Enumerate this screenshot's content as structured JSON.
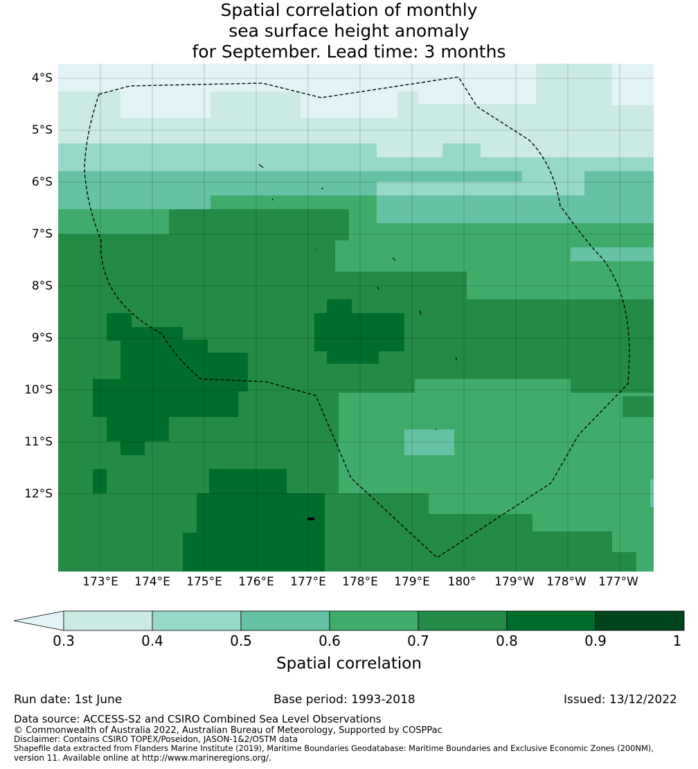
{
  "title_lines": [
    "Spatial correlation of monthly",
    "sea surface height anomaly",
    "for September. Lead time: 3 months"
  ],
  "map": {
    "lat_labels": [
      "4°S",
      "5°S",
      "6°S",
      "7°S",
      "8°S",
      "9°S",
      "10°S",
      "11°S",
      "12°S"
    ],
    "lon_labels": [
      "173°E",
      "174°E",
      "175°E",
      "176°E",
      "177°E",
      "178°E",
      "179°E",
      "180°",
      "179°W",
      "178°W",
      "177°W"
    ],
    "grid_on": true,
    "boundary_line": "dashed",
    "colors": [
      "#e3f4f7",
      "#cbeae3",
      "#98d8c9",
      "#66c2a4",
      "#40ac6c",
      "#238b45",
      "#006d2c",
      "#00441b"
    ]
  },
  "colorbar": {
    "ticks": [
      "0.3",
      "0.4",
      "0.5",
      "0.6",
      "0.7",
      "0.8",
      "0.9",
      "1"
    ],
    "label": "Spatial correlation",
    "under_color": "#e3f4f7",
    "colors": [
      "#cbeae3",
      "#98d8c9",
      "#66c2a4",
      "#40ac6c",
      "#238b45",
      "#006d2c",
      "#00441b"
    ]
  },
  "footer": {
    "run_date": "Run date: 1st June",
    "base_period": "Base period: 1993-2018",
    "issued": "Issued: 13/12/2022",
    "data_source": "Data source: ACCESS-S2 and CSIRO Combined Sea Level Observations",
    "copyright": "© Commonwealth of Australia 2022, Australian Bureau of Meteorology, Supported by COSPPac",
    "disclaimer": "Disclaimer: Contains CSIRO TOPEX/Poseidon, JASON-1&2/OSTM data",
    "shapefile_line1": "Shapefile data extracted from Flanders Marine Institute (2019), Maritime Boundaries Geodatabase: Maritime Boundaries and Exclusive Economic Zones (200NM),",
    "shapefile_line2": "version 11. Available online at http://www.marineregions.org/."
  }
}
